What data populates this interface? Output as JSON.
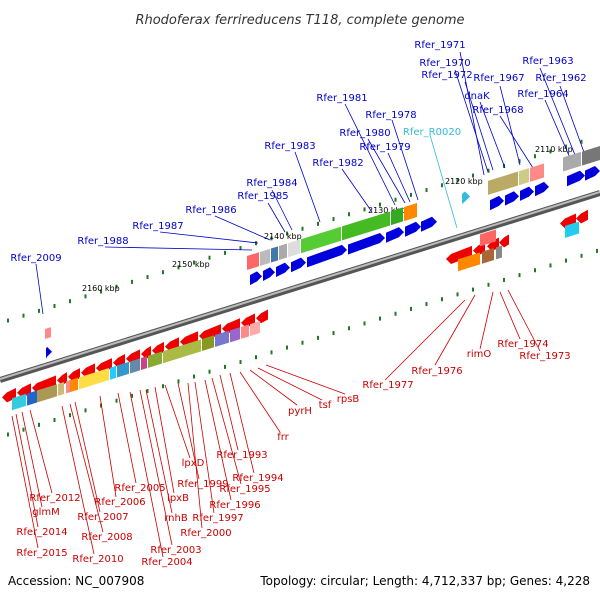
{
  "title": "Rhodoferax ferrireducens T118, complete genome",
  "footer": {
    "accession": "Accession: NC_007908",
    "summary": "Topology: circular; Length: 4,712,337 bp; Genes: 4,228"
  },
  "colors": {
    "forward_label": "#0000cc",
    "reverse_label": "#cc0000",
    "rna_label": "#33bbdd",
    "forward_arrow": "#0000dd",
    "reverse_arrow": "#ee0000",
    "backbone": "#777777",
    "tick": "#227722"
  },
  "scale_labels": [
    "2110 kbp",
    "2120 kbp",
    "2130 kbp",
    "2140 kbp",
    "2150 kbp",
    "2160 kbp"
  ],
  "forward_genes": [
    "Rfer_1971",
    "Rfer_1970",
    "Rfer_1972",
    "dnaK",
    "Rfer_1967",
    "Rfer_1963",
    "Rfer_1962",
    "Rfer_1964",
    "Rfer_1968",
    "Rfer_1981",
    "Rfer_1978",
    "Rfer_1980",
    "Rfer_1979",
    "Rfer_1983",
    "Rfer_1982",
    "Rfer_1984",
    "Rfer_1985",
    "Rfer_1986",
    "Rfer_1987",
    "Rfer_1988",
    "Rfer_2009"
  ],
  "rna_genes": [
    "Rfer_R0020"
  ],
  "reverse_genes": [
    "rpsB",
    "tsf",
    "pyrH",
    "frr",
    "Rfer_1977",
    "Rfer_1976",
    "rimO",
    "Rfer_1974",
    "Rfer_1973",
    "Rfer_1993",
    "Rfer_1994",
    "Rfer_1995",
    "Rfer_1996",
    "Rfer_1997",
    "lpxD",
    "Rfer_1999",
    "Rfer_2000",
    "lpxB",
    "rnhB",
    "Rfer_2005",
    "Rfer_2006",
    "Rfer_2007",
    "Rfer_2008",
    "Rfer_2003",
    "Rfer_2004",
    "Rfer_2010",
    "Rfer_2012",
    "glmM",
    "Rfer_2014",
    "Rfer_2015"
  ]
}
